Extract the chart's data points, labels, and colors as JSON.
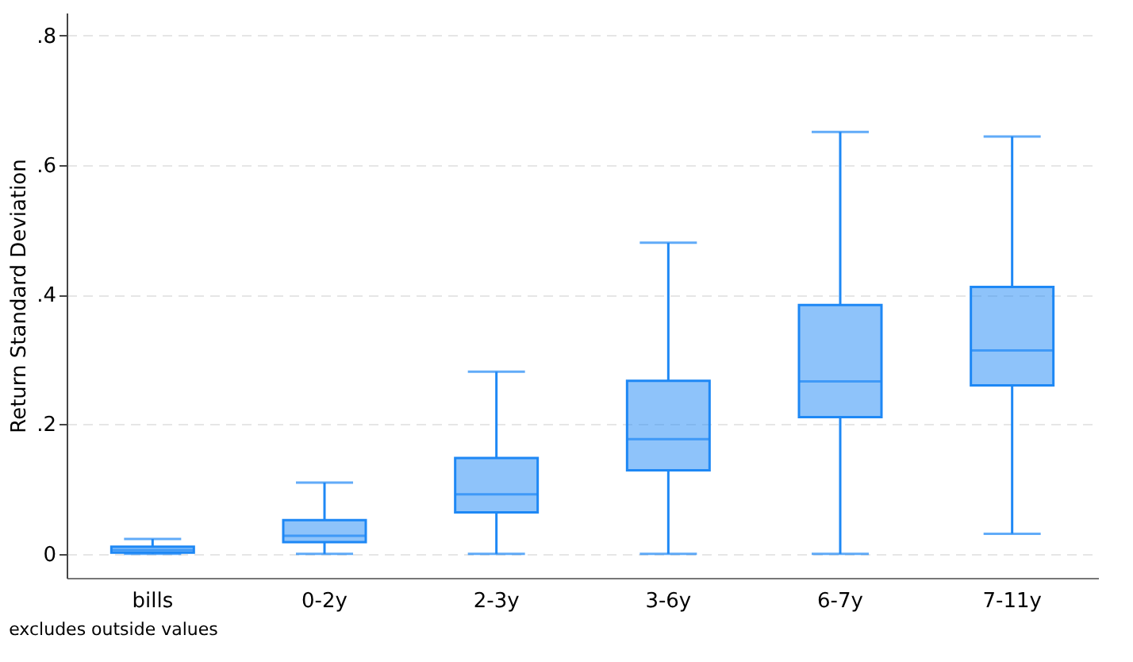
{
  "chart_data": {
    "type": "box",
    "ylabel": "Return Standard Deviation",
    "annotations": [
      "excludes outside values"
    ],
    "categories": [
      "bills",
      "0-2y",
      "2-3y",
      "3-6y",
      "6-7y",
      "7-11y"
    ],
    "boxes": [
      {
        "low": 0,
        "q1": 0.002,
        "median": 0.006,
        "q3": 0.011,
        "high": 0.023
      },
      {
        "low": 0,
        "q1": 0.018,
        "median": 0.028,
        "q3": 0.052,
        "high": 0.11
      },
      {
        "low": 0,
        "q1": 0.064,
        "median": 0.092,
        "q3": 0.148,
        "high": 0.281
      },
      {
        "low": 0,
        "q1": 0.129,
        "median": 0.177,
        "q3": 0.267,
        "high": 0.48
      },
      {
        "low": 0,
        "q1": 0.211,
        "median": 0.266,
        "q3": 0.384,
        "high": 0.651
      },
      {
        "low": 0.031,
        "q1": 0.26,
        "median": 0.314,
        "q3": 0.412,
        "high": 0.644
      }
    ],
    "color": "#1e88f5",
    "ylim": [
      -0.037,
      0.835
    ],
    "yticks": [
      0,
      {
        "value": 0.2,
        "label": ".2"
      },
      {
        "value": 0.4,
        "label": ".4"
      },
      {
        "value": 0.6,
        "label": ".6"
      },
      {
        "value": 0.8,
        "label": ".8"
      }
    ],
    "grid": "y"
  }
}
